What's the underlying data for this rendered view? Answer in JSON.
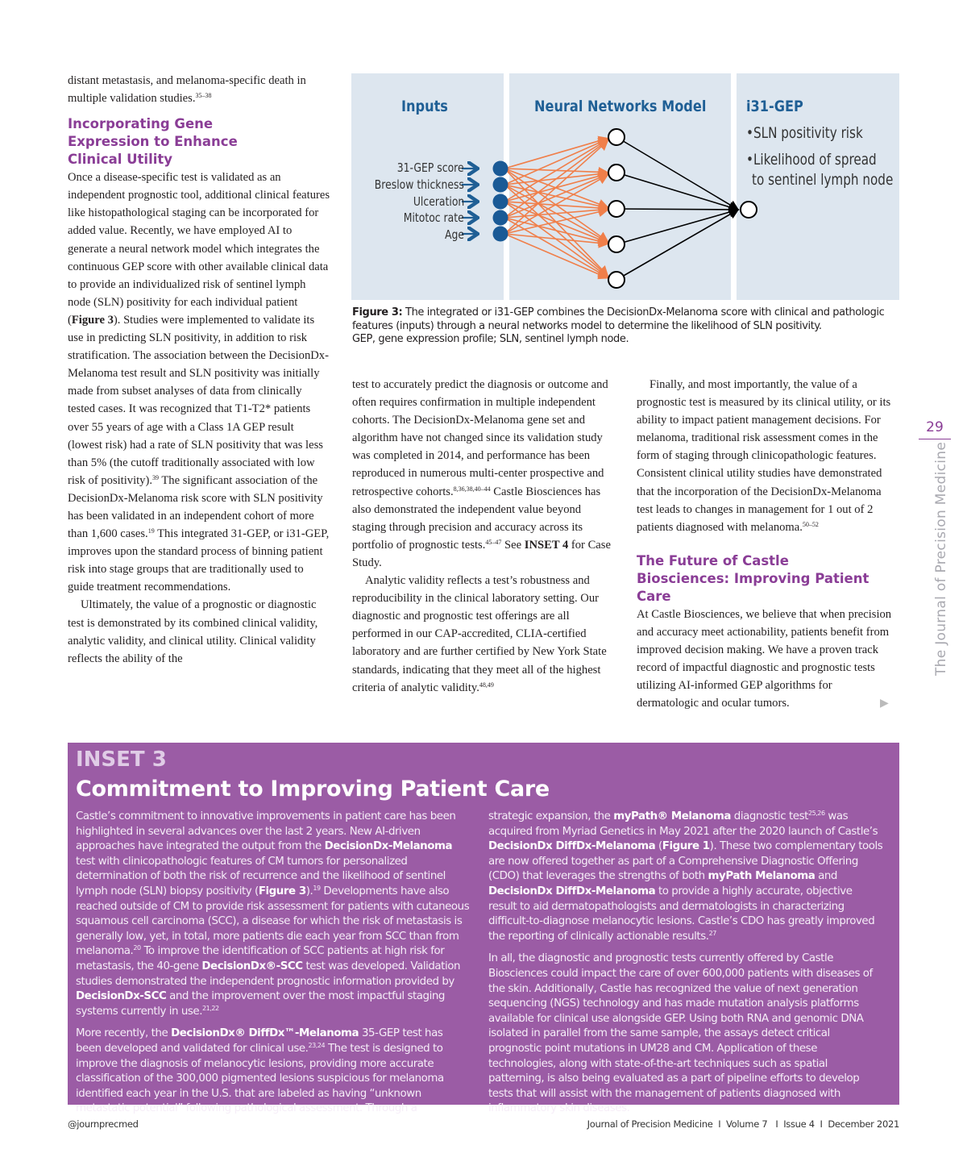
{
  "left_column": {
    "intro": [
      [
        "distant metastasis, and melanoma-specific death in multiple validation studies."
      ],
      [
        "35–38",
        "sup"
      ]
    ],
    "heading": "Incorporating Gene Expression to Enhance Clinical Utility",
    "para1": [
      [
        "Once a disease-specific test is validated as an independent prognostic tool, additional clinical features like histopathological staging can be incorporated for added value. Recently, we have employed AI to generate a neural network model which integrates the continuous GEP score with other available clinical data to provide an individualized risk of sentinel lymph node (SLN) positivity for each individual patient ("
      ],
      [
        "Figure 3",
        "b"
      ],
      [
        "). Studies were implemented to validate its use in predicting SLN positivity, in addition to risk stratification. The association between the DecisionDx-Melanoma test result and SLN positivity was initially made from subset analyses of data from clinically tested cases. It was recognized that T1-T2* patients over 55 years of age with a Class 1A GEP result (lowest risk) had a rate of SLN positivity that was less than 5% (the cutoff traditionally associated with low risk of positivity)."
      ],
      [
        "39",
        "sup"
      ],
      [
        " The significant association of the DecisionDx-Melanoma risk score with SLN positivity has been validated in an independent cohort of more than 1,600 cases."
      ],
      [
        "19",
        "sup"
      ],
      [
        " This integrated 31-GEP, or i31-GEP, improves upon the standard process of binning patient risk into stage groups that are traditionally used to guide treatment recommendations."
      ]
    ],
    "para2": [
      [
        "Ultimately, the value of a prognostic or diagnostic test is demonstrated by its combined clinical validity, analytic validity, and clinical utility. Clinical validity reflects the ability of the"
      ]
    ]
  },
  "middle_column": {
    "para1": [
      [
        "test to accurately predict the diagnosis or outcome and often requires confirmation in multiple independent cohorts. The DecisionDx-Melanoma gene set and algorithm have not changed since its validation study was completed in 2014, and performance has been reproduced in numerous multi-center prospective and retrospective cohorts."
      ],
      [
        "8,36,38,40–44",
        "sup"
      ],
      [
        " Castle Biosciences has also demonstrated the independent value beyond staging through precision and accuracy across its portfolio of prognostic tests."
      ],
      [
        "45–47",
        "sup"
      ],
      [
        " See "
      ],
      [
        "INSET 4",
        "b"
      ],
      [
        " for Case Study."
      ]
    ],
    "para2": [
      [
        "Analytic validity reflects a test’s robustness and reproducibility in the clinical laboratory setting. Our diagnostic and prognostic test offerings are all performed in our CAP-accredited, CLIA-certified laboratory and are further certified by New York State standards, indicating that they meet all of the highest criteria of analytic validity."
      ],
      [
        "48,49",
        "sup"
      ]
    ]
  },
  "right_column": {
    "para1": [
      [
        "Finally, and most importantly, the value of a prognostic test is measured by its clinical utility, or its ability to impact patient management decisions. For melanoma, traditional risk assessment comes in the form of staging through clinicopathologic features. Consistent clinical utility studies have demonstrated that the incorporation of the DecisionDx-Melanoma test leads to changes in management for 1 out of 2 patients diagnosed with melanoma."
      ],
      [
        "50–52",
        "sup"
      ]
    ],
    "heading": "The Future of Castle Biosciences: Improving Patient Care",
    "para2": [
      [
        "At Castle Biosciences, we believe that when precision and accuracy meet actionability, patients benefit from improved decision making. We have a proven track record of impactful diagnostic and prognostic tests utilizing AI-informed GEP algorithms for dermatologic and ocular tumors."
      ]
    ],
    "continue_icon": "triangle-right-icon"
  },
  "figure": {
    "inputs_title": "Inputs",
    "model_title": "Neural Networks Model",
    "output_title": "i31-GEP",
    "inputs": [
      "31-GEP score",
      "Breslow thickness",
      "Ulceration",
      "Mitotoc rate",
      "Age"
    ],
    "outputs": [
      "•SLN positivity risk",
      "•Likelihood of spread",
      "to sentinel lymph node"
    ],
    "colors": {
      "panel": "#dde6ef",
      "title": "#1f5f95",
      "input_node": "#1a5a96",
      "edge": "#f07f4a",
      "output_edge": "#000000"
    },
    "caption": [
      [
        "Figure 3:",
        "b"
      ],
      [
        " The integrated or i31-GEP combines the DecisionDx-Melanoma score with clinical and pathologic features (inputs) through a neural networks model to determine the likelihood of SLN positivity."
      ]
    ],
    "caption_abbrev": "GEP, gene expression profile; SLN, sentinel lymph node."
  },
  "inset": {
    "label": "INSET 3",
    "title": "Commitment to Improving Patient Care",
    "background": "#9b5ca5",
    "left": [
      [
        [
          "Castle’s commitment to innovative improvements in patient care has been highlighted in several advances over the last 2 years. New AI-driven approaches have integrated the output from the "
        ],
        [
          "DecisionDx-Melanoma",
          "b"
        ],
        [
          " test with clinicopathologic features of CM tumors for personalized determination of both the risk of recurrence and the likelihood of sentinel lymph node (SLN) biopsy positivity ("
        ],
        [
          "Figure 3",
          "b"
        ],
        [
          ")."
        ],
        [
          "19",
          "sup"
        ],
        [
          " Developments have also reached outside of CM to provide risk assessment for patients with cutaneous squamous cell carcinoma (SCC), a disease for which the risk of metastasis is generally low, yet, in total, more patients die each year from SCC than from melanoma."
        ],
        [
          "20",
          "sup"
        ],
        [
          " To improve the identification of SCC patients at high risk for metastasis, the 40-gene "
        ],
        [
          "DecisionDx®-SCC",
          "b"
        ],
        [
          " test was developed. Validation studies demonstrated the independent prognostic information provided by "
        ],
        [
          "DecisionDx-SCC",
          "b"
        ],
        [
          " and the improvement over the most impactful staging systems currently in use."
        ],
        [
          "21,22",
          "sup"
        ]
      ],
      [
        [
          "More recently, the "
        ],
        [
          "DecisionDx® DiffDx™-Melanoma",
          "b"
        ],
        [
          " 35-GEP test has been developed and validated for clinical use."
        ],
        [
          "23,24",
          "sup"
        ],
        [
          " The test is designed to improve the diagnosis of melanocytic lesions, providing more accurate classification of the 300,000 pigmented lesions suspicious for melanoma identified each year in the U.S. that are labeled as having “unknown metastatic potential” following pathological assessment. Through a"
        ]
      ]
    ],
    "right": [
      [
        [
          "strategic expansion, the "
        ],
        [
          "myPath® Melanoma",
          "b"
        ],
        [
          " diagnostic test"
        ],
        [
          "25,26",
          "sup"
        ],
        [
          " was acquired from Myriad Genetics in May 2021 after the 2020 launch of Castle’s "
        ],
        [
          "DecisionDx DiffDx-Melanoma",
          "b"
        ],
        [
          " ("
        ],
        [
          "Figure 1",
          "b"
        ],
        [
          "). These two complementary tools are now offered together as part of a Comprehensive Diagnostic Offering (CDO) that leverages the strengths of both "
        ],
        [
          "myPath Melanoma",
          "b"
        ],
        [
          " and "
        ],
        [
          "DecisionDx DiffDx-Melanoma",
          "b"
        ],
        [
          " to provide a highly accurate, objective result to aid dermatopathologists and dermatologists in characterizing difficult-to-diagnose melanocytic lesions. Castle’s CDO has greatly improved the reporting of clinically actionable results."
        ],
        [
          "27",
          "sup"
        ]
      ],
      [
        [
          "In all, the diagnostic and prognostic tests currently offered by Castle Biosciences could impact the care of over 600,000 patients with diseases of the skin. Additionally, Castle has recognized the value of next generation sequencing (NGS) technology and has made mutation analysis platforms available for clinical use alongside GEP. Using both RNA and genomic DNA isolated in parallel from the same sample, the assays detect critical prognostic point mutations in UM28 and CM. Application of these technologies, along with state-of-the-art techniques such as spatial patterning, is also being evaluated as a part of pipeline efforts to develop tests that will assist with the management of patients diagnosed with inflammatory skin diseases."
        ]
      ]
    ]
  },
  "sidebar": {
    "page_number": "29",
    "journal": "The Journal of Precision Medicine"
  },
  "footer": {
    "handle": "@journprecmed",
    "citation": "Journal of Precision Medicine  I  Volume 7   I  Issue 4  I  December 2021"
  }
}
